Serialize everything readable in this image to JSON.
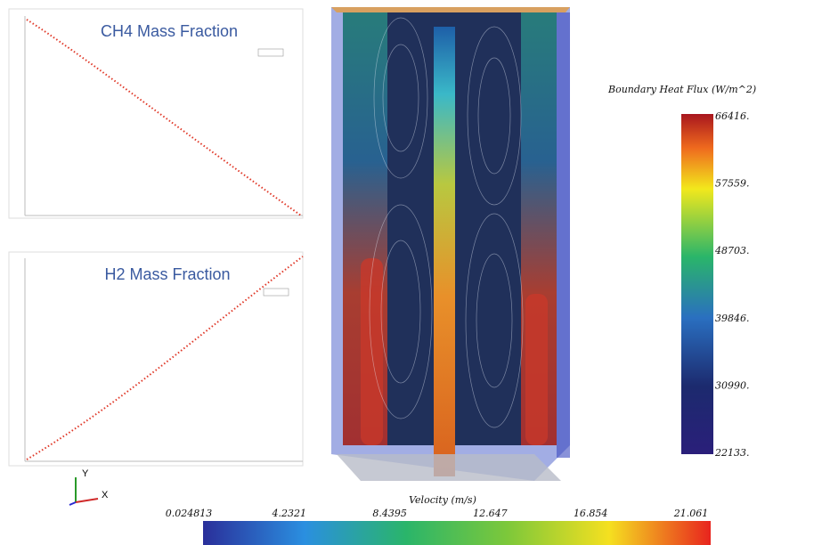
{
  "plots": [
    {
      "title": "CH4 Mass Fraction"
    },
    {
      "title": "H2 Mass Fraction"
    }
  ],
  "axes_triad": {
    "y": "Y",
    "x": "X"
  },
  "heat_flux_bar": {
    "title": "Boundary Heat Flux (W/m^2)",
    "labels": [
      "66416.",
      "57559.",
      "48703.",
      "39846.",
      "30990.",
      "22133."
    ]
  },
  "velocity_bar": {
    "title": "Velocity (m/s)",
    "labels": [
      "0.024813",
      "4.2321",
      "8.4395",
      "12.647",
      "16.854",
      "21.061"
    ]
  }
}
